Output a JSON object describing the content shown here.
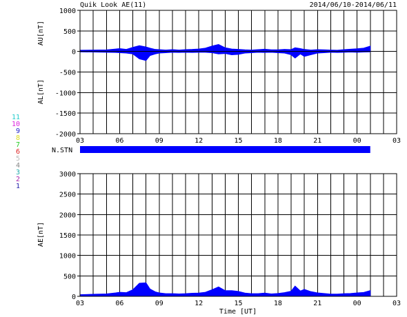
{
  "header": {
    "title": "Quik Look AE(11)",
    "date_range": "2014/06/10-2014/06/11"
  },
  "colors": {
    "fill": "#0000ff",
    "axis": "#000000",
    "background": "#ffffff"
  },
  "station_legend": [
    {
      "label": "11",
      "color": "#22cccc"
    },
    {
      "label": "10",
      "color": "#dd22dd"
    },
    {
      "label": "9",
      "color": "#2222cc"
    },
    {
      "label": "8",
      "color": "#dddd22"
    },
    {
      "label": "7",
      "color": "#22cc22"
    },
    {
      "label": "6",
      "color": "#dd2222"
    },
    {
      "label": "5",
      "color": "#bbbbbb"
    },
    {
      "label": "4",
      "color": "#888888"
    },
    {
      "label": "3",
      "color": "#22aaaa"
    },
    {
      "label": "2",
      "color": "#aa22aa"
    },
    {
      "label": "1",
      "color": "#2222aa"
    }
  ],
  "station_label": "N.STN",
  "x_tick_labels": [
    "03",
    "06",
    "09",
    "12",
    "15",
    "18",
    "21",
    "00",
    "03"
  ],
  "chart_data": [
    {
      "id": "au_al",
      "type": "area",
      "ylabel_top": "AU[nT]",
      "ylabel_bottom": "AL[nT]",
      "xlabel": "",
      "x_unit": "hours UT from 03:00 on 2014/06/10",
      "xlim": [
        0,
        24
      ],
      "ylim": [
        -2000,
        1000
      ],
      "y_ticks": [
        1000,
        500,
        0,
        -500,
        -1000,
        -1500,
        -2000
      ],
      "grid": true,
      "data_end_x": 22,
      "series": [
        {
          "name": "AU",
          "x": [
            0,
            1,
            2,
            2.7,
            3,
            3.5,
            4,
            4.5,
            5,
            5.3,
            5.7,
            6,
            6.5,
            7,
            7.5,
            8,
            8.5,
            9,
            9.5,
            10,
            10.5,
            11,
            11.5,
            12,
            12.5,
            13,
            13.5,
            14,
            14.5,
            15,
            15.5,
            16,
            16.3,
            16.7,
            17,
            17.5,
            18,
            18.5,
            19,
            19.5,
            20,
            20.5,
            21,
            21.5,
            22
          ],
          "values": [
            30,
            35,
            38,
            60,
            70,
            50,
            100,
            140,
            110,
            80,
            50,
            45,
            35,
            45,
            35,
            45,
            50,
            60,
            80,
            130,
            170,
            90,
            60,
            50,
            40,
            35,
            45,
            55,
            40,
            40,
            50,
            45,
            90,
            70,
            50,
            35,
            45,
            40,
            35,
            30,
            45,
            55,
            65,
            80,
            130
          ]
        },
        {
          "name": "AL",
          "x": [
            0,
            1,
            2,
            2.7,
            3,
            3.5,
            4,
            4.5,
            5,
            5.3,
            5.7,
            6,
            6.5,
            7,
            7.5,
            8,
            8.5,
            9,
            9.5,
            10,
            10.5,
            11,
            11.5,
            12,
            12.5,
            13,
            13.5,
            14,
            14.5,
            15,
            15.5,
            16,
            16.3,
            16.7,
            17,
            17.5,
            18,
            18.5,
            19,
            19.5,
            20,
            20.5,
            21,
            21.5,
            22
          ],
          "values": [
            -10,
            -15,
            -20,
            -25,
            -30,
            -40,
            -60,
            -180,
            -220,
            -100,
            -60,
            -40,
            -30,
            -20,
            -25,
            -20,
            -25,
            -20,
            -20,
            -30,
            -60,
            -50,
            -80,
            -70,
            -40,
            -30,
            -20,
            -25,
            -20,
            -30,
            -40,
            -80,
            -160,
            -60,
            -120,
            -80,
            -40,
            -30,
            -20,
            -25,
            -20,
            -15,
            -20,
            -15,
            -10
          ]
        }
      ]
    },
    {
      "id": "ae",
      "type": "area",
      "ylabel": "AE[nT]",
      "xlabel": "Time [UT]",
      "x_unit": "hours UT from 03:00 on 2014/06/10",
      "xlim": [
        0,
        24
      ],
      "ylim": [
        0,
        3000
      ],
      "y_ticks": [
        3000,
        2500,
        2000,
        1500,
        1000,
        500,
        0
      ],
      "grid": true,
      "data_end_x": 22,
      "series": [
        {
          "name": "AE",
          "x": [
            0,
            1,
            2,
            2.7,
            3,
            3.5,
            4,
            4.5,
            5,
            5.3,
            5.7,
            6,
            6.5,
            7,
            7.5,
            8,
            8.5,
            9,
            9.5,
            10,
            10.5,
            11,
            11.5,
            12,
            12.5,
            13,
            13.5,
            14,
            14.5,
            15,
            15.5,
            16,
            16.3,
            16.7,
            17,
            17.5,
            18,
            18.5,
            19,
            19.5,
            20,
            20.5,
            21,
            21.5,
            22
          ],
          "values": [
            40,
            50,
            60,
            85,
            100,
            90,
            160,
            320,
            330,
            180,
            110,
            85,
            65,
            65,
            60,
            65,
            75,
            80,
            100,
            160,
            230,
            140,
            140,
            120,
            80,
            65,
            65,
            80,
            60,
            70,
            90,
            125,
            250,
            130,
            170,
            115,
            85,
            70,
            55,
            55,
            65,
            70,
            85,
            95,
            140
          ]
        }
      ]
    }
  ]
}
